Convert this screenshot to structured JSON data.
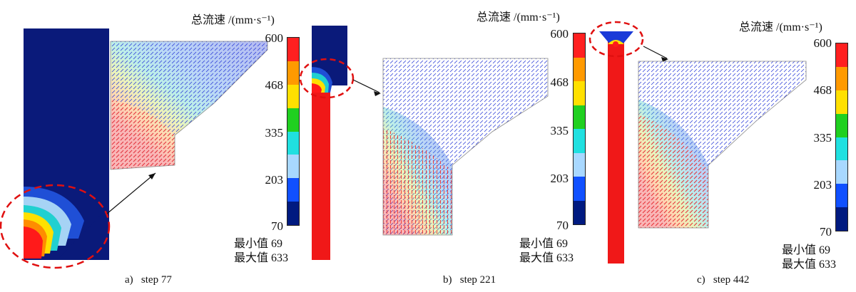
{
  "colorbar": {
    "title": "总流速 /(mm·s⁻¹)",
    "ticks": [
      "600",
      "468",
      "335",
      "203",
      "70"
    ],
    "colors": [
      "#ff2020",
      "#ff9a00",
      "#ffe000",
      "#20d020",
      "#20e0e0",
      "#a8d8ff",
      "#1050ff",
      "#001a80"
    ]
  },
  "stats": {
    "min_label": "最小值",
    "min_value": "69",
    "max_label": "最大值",
    "max_value": "633"
  },
  "panels": [
    {
      "letter": "a)",
      "step": "step 77"
    },
    {
      "letter": "b)",
      "step": "step 221"
    },
    {
      "letter": "c)",
      "step": "step 442"
    }
  ],
  "icons": {
    "zoom_circle": "dashed-circle-icon",
    "arrow": "arrow-icon"
  }
}
